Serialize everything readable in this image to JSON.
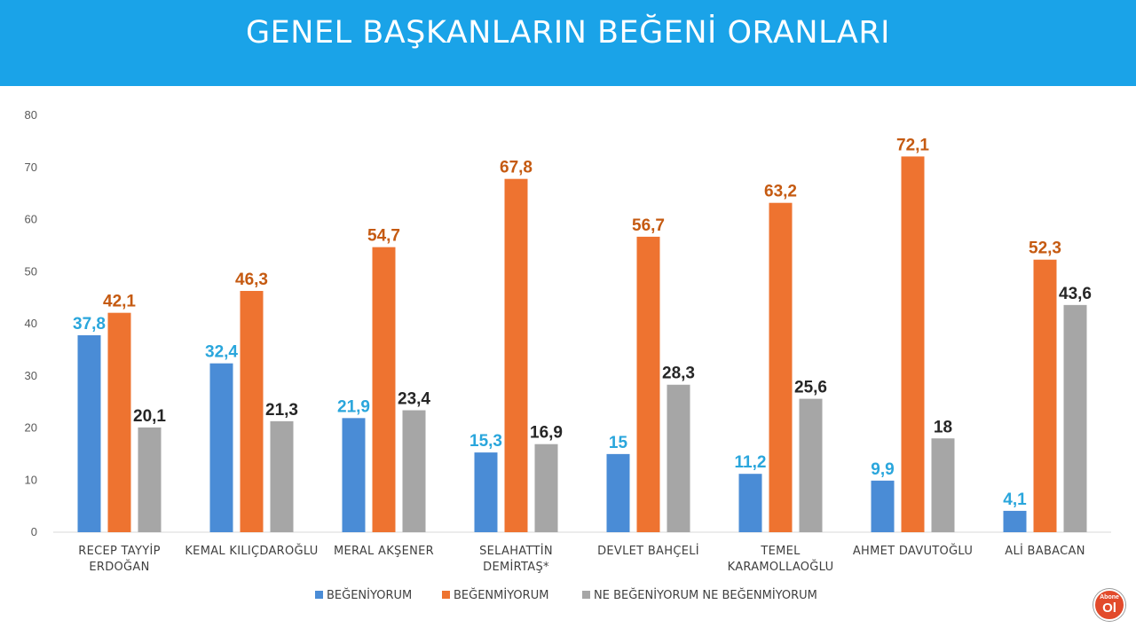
{
  "header": {
    "title": "GENEL BAŞKANLARIN BEĞENİ ORANLARI"
  },
  "badge": {
    "top": "Abone",
    "main": "Ol"
  },
  "chart_data": {
    "type": "bar",
    "categories": [
      [
        "RECEP TAYYİP",
        "ERDOĞAN"
      ],
      [
        "KEMAL KILIÇDAROĞLU"
      ],
      [
        "MERAL AKŞENER"
      ],
      [
        "SELAHATTİN",
        "DEMİRTAŞ*"
      ],
      [
        "DEVLET BAHÇELİ"
      ],
      [
        "TEMEL",
        "KARAMOLLAOĞLU"
      ],
      [
        "AHMET DAVUTOĞLU"
      ],
      [
        "ALİ BABACAN"
      ]
    ],
    "series": [
      {
        "name": "BEĞENİYORUM",
        "color": "#4a8cd6",
        "label_color": "#2aa6dc",
        "values": [
          37.8,
          32.4,
          21.9,
          15.3,
          15,
          11.2,
          9.9,
          4.1
        ],
        "labels": [
          "37,8",
          "32,4",
          "21,9",
          "15,3",
          "15",
          "11,2",
          "9,9",
          "4,1"
        ]
      },
      {
        "name": "BEĞENMİYORUM",
        "color": "#ee7330",
        "label_color": "#c55a11",
        "values": [
          42.1,
          46.3,
          54.7,
          67.8,
          56.7,
          63.2,
          72.1,
          52.3
        ],
        "labels": [
          "42,1",
          "46,3",
          "54,7",
          "67,8",
          "56,7",
          "63,2",
          "72,1",
          "52,3"
        ]
      },
      {
        "name": "NE BEĞENİYORUM NE BEĞENMİYORUM",
        "color": "#a6a6a6",
        "label_color": "#262626",
        "values": [
          20.1,
          21.3,
          23.4,
          16.9,
          28.3,
          25.6,
          18,
          43.6
        ],
        "labels": [
          "20,1",
          "21,3",
          "23,4",
          "16,9",
          "28,3",
          "25,6",
          "18",
          "43,6"
        ]
      }
    ],
    "yticks": [
      "0",
      "10",
      "20",
      "30",
      "40",
      "50",
      "60",
      "70",
      "80"
    ],
    "ylim": [
      0,
      80
    ],
    "grid": false,
    "legend_position": "bottom"
  }
}
